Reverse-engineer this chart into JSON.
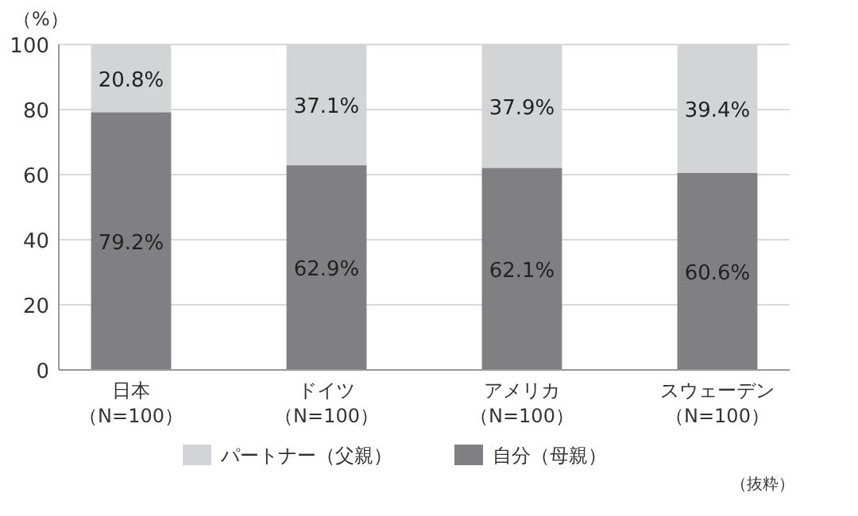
{
  "chart_data": {
    "type": "bar",
    "stacked": true,
    "ylabel": "（%）",
    "categories": [
      "日本（N=100）",
      "ドイツ（N=100）",
      "アメリカ（N=100）",
      "スウェーデン（N=100）"
    ],
    "series": [
      {
        "name": "自分（母親）",
        "color": "#808083",
        "values": [
          79.2,
          62.9,
          62.1,
          60.6
        ],
        "value_labels": [
          "79.2%",
          "62.9%",
          "62.1%",
          "60.6%"
        ]
      },
      {
        "name": "パートナー（父親）",
        "color": "#d3d4d6",
        "values": [
          20.8,
          37.1,
          37.9,
          39.4
        ],
        "value_labels": [
          "20.8%",
          "37.1%",
          "37.9%",
          "39.4%"
        ]
      }
    ],
    "ylim": [
      0,
      100
    ],
    "yticks": [
      0,
      20,
      40,
      60,
      80,
      100
    ],
    "grid": "y",
    "legend": "bottom",
    "annotations": [
      "（抜粋）"
    ]
  }
}
